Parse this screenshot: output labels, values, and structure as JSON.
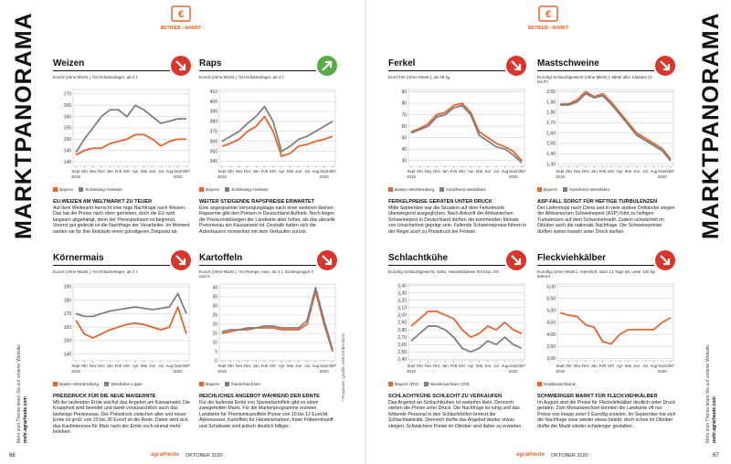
{
  "header": {
    "section": "BETRIEB • MARKT"
  },
  "side_title": "MARKTPANORAMA",
  "side_note": "Mehr zum Thema lesen Sie auf unserer Website:",
  "side_link": "mehr.agrarheute.com",
  "source_note": "* Prognose; Quelle: AMI GmbH Bonn",
  "footer": {
    "left_page": "66",
    "brand": "agrarheute",
    "issue": "OKTOBER 2020",
    "right_page": "67"
  },
  "chart_data": [
    {
      "type": "line",
      "title": "Weizen",
      "trend": "down",
      "subtitle": "Euro/t (ohne MwSt.), frei Erfasserlager, ab 2 t",
      "categories": [
        "Sept",
        "Okt",
        "Nov",
        "Dez",
        "Jan",
        "Feb",
        "Mrz",
        "Apr",
        "Mai",
        "Jun",
        "Jul",
        "Aug",
        "Sept",
        "Okt*"
      ],
      "years": [
        "2019",
        "2020"
      ],
      "ylim": [
        138,
        172
      ],
      "yticks": [
        140,
        145,
        150,
        155,
        160,
        165,
        170
      ],
      "grid": true,
      "series": [
        {
          "name": "Bayern",
          "color": "#e8642c",
          "values": [
            143,
            145,
            146,
            146,
            148,
            149,
            150,
            152,
            152,
            150,
            147,
            149,
            150,
            150
          ]
        },
        {
          "name": "Schleswig-Holstein",
          "color": "#7f7f7f",
          "values": [
            144,
            150,
            155,
            160,
            163,
            163,
            160,
            165,
            163,
            160,
            157,
            158,
            159,
            159
          ]
        }
      ],
      "headline": "EU-WEIZEN AM WELTMARKT ZU TEUER",
      "body": "Auf dem Weltmarkt herrscht eine rege Nachfrage nach Weizen. Das hat die Preise nach oben getrieben, doch die EU wird langsam abgehängt, denn der Preisspielraum ist begrenzt. Vorerst gut gedeckt ist die Nachfrage der Verarbeiter. Im Moment warten sie für ihre Einkäufe einen günstigeren Zeitpunkt ab."
    },
    {
      "type": "line",
      "title": "Raps",
      "trend": "up",
      "subtitle": "Euro/t (ohne MwSt.), frei Erfasserlager, ab 2 t",
      "categories": [
        "Sept",
        "Okt",
        "Nov",
        "Dez",
        "Jan",
        "Feb",
        "Mrz",
        "Apr",
        "Mai",
        "Jun",
        "Jul",
        "Aug",
        "Sept",
        "Okt*"
      ],
      "years": [
        "2019",
        "2020"
      ],
      "ylim": [
        335,
        412
      ],
      "yticks": [
        340,
        350,
        360,
        370,
        380,
        390,
        400,
        410
      ],
      "grid": true,
      "series": [
        {
          "name": "Bayern",
          "color": "#e8642c",
          "values": [
            355,
            358,
            362,
            370,
            375,
            385,
            370,
            345,
            348,
            355,
            357,
            360,
            362,
            365
          ]
        },
        {
          "name": "Schleswig-Holstein",
          "color": "#7f7f7f",
          "values": [
            360,
            365,
            370,
            378,
            385,
            395,
            380,
            350,
            355,
            362,
            365,
            370,
            375,
            380
          ]
        }
      ],
      "headline": "WEITER STEIGENDE RAPSPREISE ERWARTET",
      "body": "Eine angespannte Versorgungslage nach einer weiteren kleinen Rapsernte gibt den Preisen in Deutschland Auftrieb. Noch liegen die Preisvorstellungen der Landwirte aber höher, als das aktuelle Preisniveau am Kassamarkt ist. Deshalb halten sich die Ackerbauern momentan mit dem Verkaufen zurück."
    },
    {
      "type": "line",
      "title": "Körnermais",
      "trend": "down",
      "subtitle": "Euro/t (ohne MwSt.), frei Erfasserlager, ab 2 t",
      "categories": [
        "Sept",
        "Okt",
        "Nov",
        "Dez",
        "Jan",
        "Feb",
        "Mrz",
        "Apr",
        "Mai",
        "Jun",
        "Jul",
        "Aug",
        "Sept",
        "Okt*"
      ],
      "years": [
        "2019",
        "2020"
      ],
      "ylim": [
        135,
        192
      ],
      "yticks": [
        140,
        150,
        160,
        170,
        180,
        190
      ],
      "grid": true,
      "series": [
        {
          "name": "Baden-Württemberg",
          "color": "#e8642c",
          "values": [
            165,
            155,
            152,
            155,
            158,
            160,
            162,
            163,
            162,
            160,
            158,
            160,
            175,
            155
          ]
        },
        {
          "name": "Westfalen-Lippe",
          "color": "#7f7f7f",
          "values": [
            170,
            168,
            168,
            170,
            172,
            173,
            174,
            175,
            174,
            173,
            174,
            175,
            185,
            170
          ]
        }
      ],
      "headline": "PREISDRUCK FÜR DIE NEUE MAISERNTE",
      "body": "Mit der laufenden Ernte wächst das Angebot am Kassamarkt. Die Knappheit wird beendet und damit voraussichtlich auch das bisherige Preisniveau. Der Preisdruck zwischen alter und neuer Ernte ist groß: von 20 bis 30 Euro/t ist die Rede. Daher wird sich das Kaufinteresse für Mais nach der Ernte noch einmal mehr beleben."
    },
    {
      "type": "line",
      "title": "Kartoffeln",
      "trend": "down",
      "subtitle": "Euro/t (ohne MwSt.), frei Rampe, lose, ab 2 t, Sortengruppe 2 und 3",
      "categories": [
        "Sept",
        "Okt",
        "Nov",
        "Dez",
        "Jan",
        "Feb",
        "Mrz",
        "Apr",
        "Mai",
        "Jun",
        "Jul",
        "Aug",
        "Sept",
        "Okt*"
      ],
      "years": [
        "2019",
        "2020"
      ],
      "ylim": [
        0,
        42
      ],
      "yticks": [
        0,
        5,
        10,
        15,
        20,
        25,
        30,
        35,
        40
      ],
      "grid": true,
      "series": [
        {
          "name": "Bayern",
          "color": "#e8642c",
          "values": [
            15,
            16,
            17,
            17,
            18,
            18,
            18,
            17,
            17,
            17,
            20,
            38,
            20,
            5
          ]
        },
        {
          "name": "Niedersachsen",
          "color": "#7f7f7f",
          "values": [
            16,
            17,
            17,
            18,
            18,
            19,
            19,
            18,
            18,
            18,
            22,
            40,
            22,
            6
          ]
        }
      ],
      "headline": "REICHLICHES ANGEBOT WÄHREND DER ERNTE",
      "body": "Für die laufende Ernte von Speisekartoffeln gibt es einen zweigeteilten Markt. Für die Markenprogramme erzielen Landwirte für Premiumkartoffeln Preise von 10 bis 12 Euro/dt. Aktionsware, Kartoffeln für Handelsmarken, freier Frittenrohstoff und Schälware sind jedoch deutlich billiger."
    },
    {
      "type": "line",
      "title": "Ferkel",
      "trend": "down",
      "subtitle": "Euro/Tier (ohne MwSt.), ab 28 kg",
      "categories": [
        "Sept",
        "Okt",
        "Nov",
        "Dez",
        "Jan",
        "Feb",
        "Mrz",
        "Apr",
        "Mai",
        "Jun",
        "Jul",
        "Aug",
        "Sept",
        "Okt*"
      ],
      "years": [
        "2019",
        "2020"
      ],
      "ylim": [
        25,
        92
      ],
      "yticks": [
        30,
        40,
        50,
        60,
        70,
        80,
        90
      ],
      "grid": true,
      "series": [
        {
          "name": "Baden-Württemberg",
          "color": "#e8642c",
          "values": [
            55,
            58,
            62,
            70,
            72,
            78,
            80,
            72,
            55,
            50,
            45,
            42,
            38,
            30
          ]
        },
        {
          "name": "Nordrhein-Westfalen",
          "color": "#7f7f7f",
          "values": [
            54,
            57,
            60,
            68,
            70,
            76,
            78,
            70,
            52,
            47,
            42,
            40,
            35,
            28
          ]
        }
      ],
      "headline": "FERKELPREISE GERATEN UNTER DRUCK",
      "body": "Mitte September war die Situation auf dem Ferkelmarkt überwiegend ausgeglichen. Nach Ankunft der Afrikanischen Schweinepest in Deutschland dürften die kommenden Monate von Unsicherheit geprägt sein. Fallende Schweinepreise führen in der Regel auch zu Preisdruck bei Ferkeln."
    },
    {
      "type": "line",
      "title": "Mastschweine",
      "trend": "down",
      "subtitle": "Euro/kg Schlachtgewicht (ohne MwSt.), Mittel aller Klassen (S bis P)",
      "categories": [
        "Sept",
        "Okt",
        "Nov",
        "Dez",
        "Jan",
        "Feb",
        "Mrz",
        "Apr",
        "Mai",
        "Jun",
        "Jul",
        "Aug",
        "Sept",
        "Okt*"
      ],
      "years": [
        "2019",
        "2020"
      ],
      "ylim": [
        1.28,
        2.02
      ],
      "yticks": [
        {
          "value": 1.3,
          "label": "1,30"
        },
        {
          "value": 1.4,
          "label": "1,40"
        },
        {
          "value": 1.5,
          "label": "1,50"
        },
        {
          "value": 1.6,
          "label": "1,60"
        },
        {
          "value": 1.7,
          "label": "1,70"
        },
        {
          "value": 1.8,
          "label": "1,80"
        },
        {
          "value": 1.9,
          "label": "1,90"
        },
        {
          "value": 2,
          "label": "2,00"
        }
      ],
      "grid": true,
      "series": [
        {
          "name": "Bayern",
          "color": "#e8642c",
          "values": [
            1.88,
            1.88,
            1.92,
            2.0,
            1.95,
            1.98,
            1.9,
            1.8,
            1.7,
            1.6,
            1.55,
            1.5,
            1.45,
            1.35
          ]
        },
        {
          "name": "Nordrhein-Westfalen",
          "color": "#7f7f7f",
          "values": [
            1.87,
            1.87,
            1.9,
            1.98,
            1.94,
            1.96,
            1.88,
            1.78,
            1.68,
            1.58,
            1.53,
            1.48,
            1.43,
            1.33
          ]
        }
      ],
      "headline": "ASP-FALL SORGT FÜR HEFTIGE TURBULENZEN",
      "body": "Der Lieferstopp nach China und in viele andere Drittländer wegen der Afrikanischen Schweinepest (ASP) führt zu heftigen Turbulenzen auf dem Schweinemarkt. Zudem schwächelt im Oktober auch die nationale Nachfrage. Die Schweinepreise dürften weiter massiv unter Druck stehen."
    },
    {
      "type": "line",
      "title": "Schlachtkühe",
      "trend": "down",
      "subtitle": "Euro/kg Schlachtgewicht, netto, Handelsklasse R3 bzw. O3",
      "categories": [
        "Sept",
        "Okt",
        "Nov",
        "Dez",
        "Jan",
        "Feb",
        "Mrz",
        "Apr",
        "Mai",
        "Jun",
        "Jul",
        "Aug",
        "Sept",
        "Okt*"
      ],
      "years": [
        "2019",
        "2020"
      ],
      "ylim": [
        2.38,
        3.42
      ],
      "yticks": [
        {
          "value": 2.4,
          "label": "2,40"
        },
        {
          "value": 2.5,
          "label": "2,50"
        },
        {
          "value": 2.6,
          "label": "2,60"
        },
        {
          "value": 2.7,
          "label": "2,70"
        },
        {
          "value": 2.8,
          "label": "2,80"
        },
        {
          "value": 2.9,
          "label": "2,90"
        },
        {
          "value": 3,
          "label": "3,00"
        },
        {
          "value": 3.1,
          "label": "3,10"
        },
        {
          "value": 3.2,
          "label": "3,20"
        },
        {
          "value": 3.3,
          "label": "3,30"
        },
        {
          "value": 3.4,
          "label": "3,40"
        }
      ],
      "grid": true,
      "series": [
        {
          "name": "Bayern (R3)",
          "color": "#e8642c",
          "values": [
            2.85,
            2.95,
            3.05,
            3.05,
            3.0,
            2.95,
            2.8,
            2.7,
            2.75,
            2.85,
            2.8,
            2.9,
            2.8,
            2.75
          ]
        },
        {
          "name": "Niedersachsen (O3)",
          "color": "#7f7f7f",
          "values": [
            2.65,
            2.75,
            2.85,
            2.85,
            2.8,
            2.7,
            2.55,
            2.5,
            2.55,
            2.65,
            2.6,
            2.7,
            2.6,
            2.55
          ]
        }
      ],
      "headline": "SCHLACHTKÜHE SCHLECHT ZU VERKAUFEN",
      "body": "Das Angebot an Schlachtkühen ist weiterhin klein. Dennoch stehen die Preise unter Druck. Die Nachfrage ist ruhig und das fehlende Personal in den Schlachthöfen bremst die Schlachtaktivität. Dennoch dürfte das Angebot wieder etwas steigen. Schwächere Preise im Oktober sind daher zu erwarten."
    },
    {
      "type": "line",
      "title": "Fleckviehkälber",
      "trend": "down",
      "subtitle": "Euro/kg (ohne MwSt.), männlich, über 14 Tage alt, unter 100 kg lebend",
      "categories": [
        "Sept",
        "Okt",
        "Nov",
        "Dez",
        "Jan",
        "Feb",
        "Mrz",
        "Apr",
        "Mai",
        "Jun",
        "Jul",
        "Aug",
        "Sept",
        "Okt*"
      ],
      "years": [
        "2019",
        "2020"
      ],
      "ylim": [
        2.9,
        6.1
      ],
      "yticks": [
        {
          "value": 3,
          "label": "3,00"
        },
        {
          "value": 3.5,
          "label": "3,50"
        },
        {
          "value": 4,
          "label": "4,00"
        },
        {
          "value": 4.5,
          "label": "4,50"
        },
        {
          "value": 5,
          "label": "5,00"
        },
        {
          "value": 5.5,
          "label": "5,50"
        },
        {
          "value": 6,
          "label": "6,00"
        }
      ],
      "grid": true,
      "series": [
        {
          "name": "Süddeutschland",
          "color": "#e8642c",
          "values": [
            4.9,
            4.8,
            4.75,
            4.4,
            4.3,
            3.7,
            3.6,
            4.0,
            4.2,
            4.2,
            4.2,
            4.2,
            4.5,
            4.7
          ]
        }
      ],
      "headline": "SCHWIERIGER MARKT FÜR FLECKVIEHKÄLBER",
      "body": "Im August sind die Preise für Fleckviehkälber deutlich unter Druck geraten. Zum Monatswechsel konnten die Landwirte oft nur Preise von knapp unter 5 Euro/kg erzielen. Im September hat sich die Nachfrage zwar wieder etwas belebt, doch schon im Oktober dürfte der Markt wieder schwieriger gestalten."
    }
  ]
}
